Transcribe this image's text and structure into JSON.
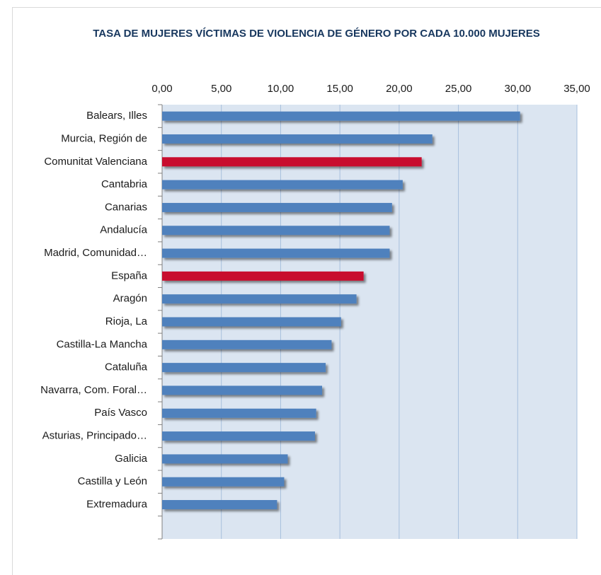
{
  "chart_data": {
    "type": "hbar",
    "title": "TASA DE MUJERES VÍCTIMAS DE VIOLENCIA DE GÉNERO POR CADA 10.000 MUJERES",
    "categories": [
      "Balears, Illes",
      "Murcia, Región de",
      "Comunitat Valenciana",
      "Cantabria",
      "Canarias",
      "Andalucía",
      "Madrid, Comunidad…",
      "España",
      "Aragón",
      "Rioja, La",
      "Castilla-La Mancha",
      "Cataluña",
      "Navarra, Com. Foral…",
      "País Vasco",
      "Asturias, Principado…",
      "Galicia",
      "Castilla y León",
      "Extremadura",
      null
    ],
    "values": [
      30.2,
      22.8,
      21.9,
      20.3,
      19.4,
      19.2,
      19.2,
      17.0,
      16.4,
      15.1,
      14.3,
      13.8,
      13.5,
      13.0,
      12.9,
      10.6,
      10.3,
      9.7,
      null
    ],
    "colors": [
      "#4f81bd",
      "#4f81bd",
      "#c8102e",
      "#4f81bd",
      "#4f81bd",
      "#4f81bd",
      "#4f81bd",
      "#c8102e",
      "#4f81bd",
      "#4f81bd",
      "#4f81bd",
      "#4f81bd",
      "#4f81bd",
      "#4f81bd",
      "#4f81bd",
      "#4f81bd",
      "#4f81bd",
      "#4f81bd",
      "#4f81bd"
    ],
    "xlim": [
      0,
      35
    ],
    "xticks": [
      {
        "value": 0,
        "label": "0,00"
      },
      {
        "value": 5,
        "label": "5,00"
      },
      {
        "value": 10,
        "label": "10,00"
      },
      {
        "value": 15,
        "label": "15,00"
      },
      {
        "value": 20,
        "label": "20,00"
      },
      {
        "value": 25,
        "label": "25,00"
      },
      {
        "value": 30,
        "label": "30,00"
      },
      {
        "value": 35,
        "label": "35,00"
      }
    ],
    "grid": true
  }
}
